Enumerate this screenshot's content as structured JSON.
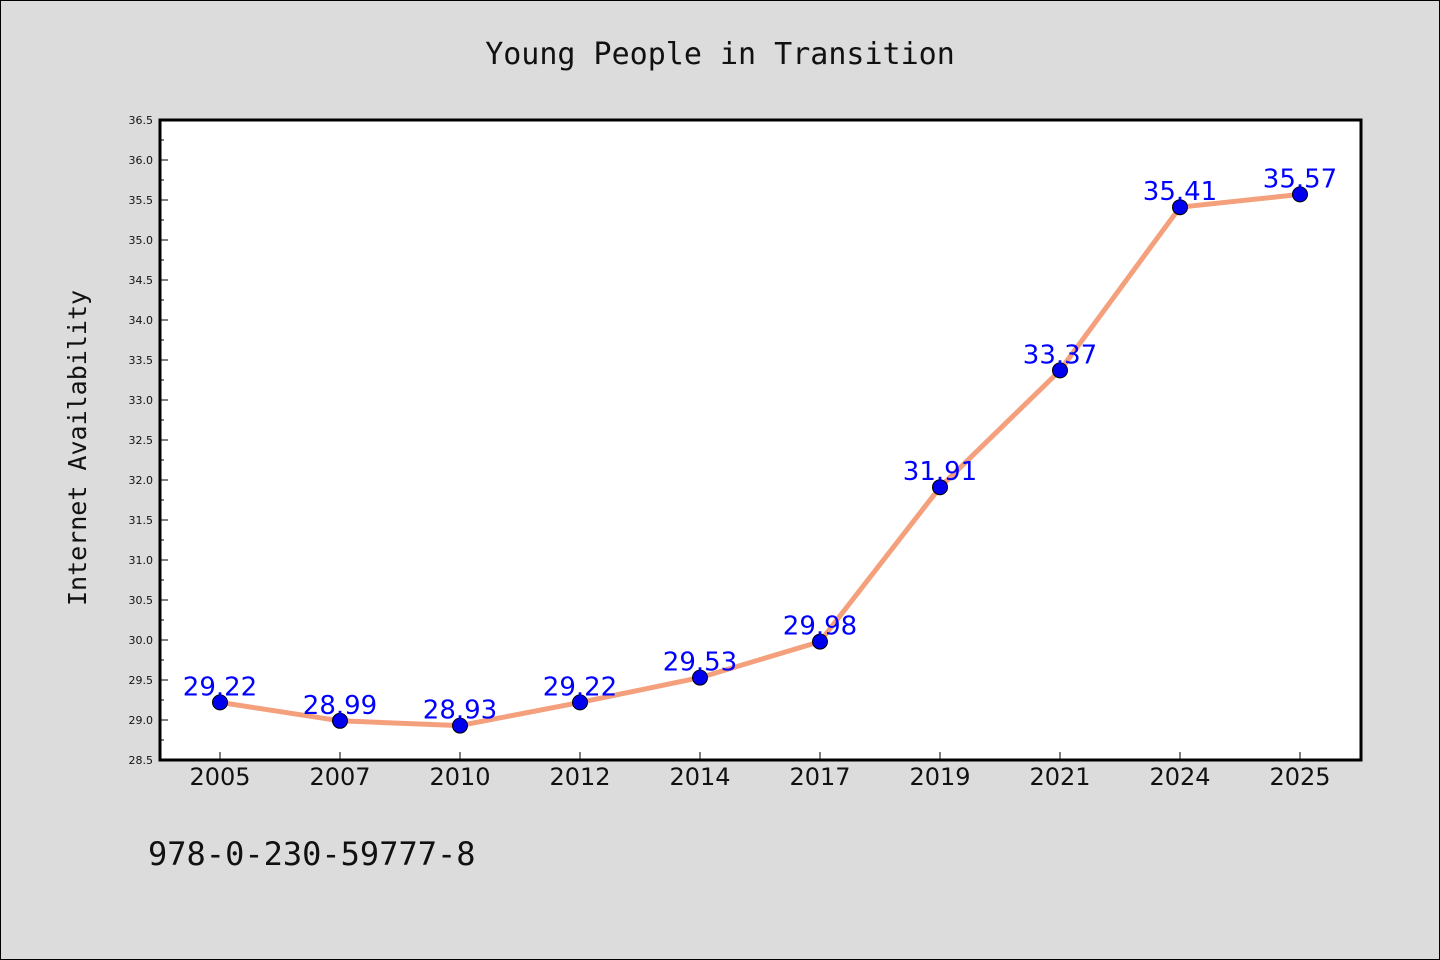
{
  "chart_data": {
    "type": "line",
    "title": "Young People in Transition",
    "xlabel": "",
    "ylabel": "Internet Availability",
    "categories": [
      "2005",
      "2007",
      "2010",
      "2012",
      "2014",
      "2017",
      "2019",
      "2021",
      "2024",
      "2025"
    ],
    "series": [
      {
        "values": [
          29.22,
          28.99,
          28.93,
          29.22,
          29.53,
          29.98,
          31.91,
          33.37,
          35.41,
          35.57
        ],
        "line_color": "#f4a07c",
        "marker_color": "#0000ee",
        "label_color": "#0000ff"
      }
    ],
    "ylim": [
      28.5,
      36.5
    ],
    "yticks": [
      "28.5",
      "29.0",
      "29.5",
      "30.0",
      "30.5",
      "31.0",
      "31.5",
      "32.0",
      "32.5",
      "33.0",
      "33.5",
      "34.0",
      "34.5",
      "35.0",
      "35.5",
      "36.0",
      "36.5"
    ],
    "data_labels": [
      "29.22",
      "28.99",
      "28.93",
      "29.22",
      "29.53",
      "29.98",
      "31.91",
      "33.37",
      "35.41",
      "35.57"
    ],
    "grid": false,
    "legend": "none"
  },
  "footer": {
    "isbn": "978-0-230-59777-8"
  },
  "colors": {
    "background": "#dcdcdc",
    "plot_background": "#ffffff"
  }
}
